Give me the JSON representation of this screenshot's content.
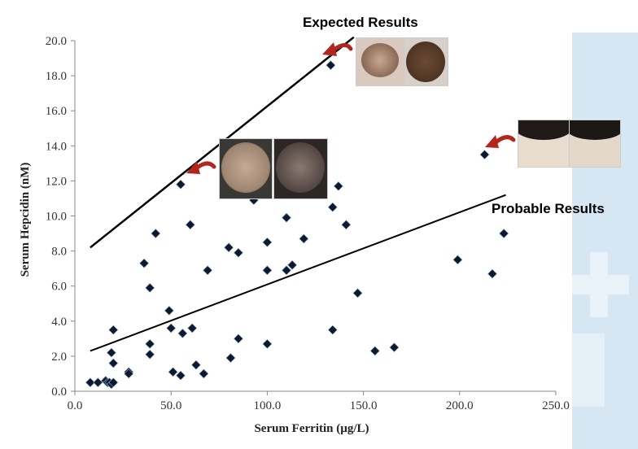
{
  "annotations": {
    "expected": "Expected Results",
    "probable": "Probable Results"
  },
  "colors": {
    "marker": "#0d1a2e",
    "arrow": "#b3261e",
    "axis": "#888888",
    "trend": "#000000",
    "panel": "#d6e7f3"
  },
  "chart_data": {
    "type": "scatter",
    "xlabel": "Serum Ferritin (µg/L)",
    "ylabel": "Serum Hepcidin (nM)",
    "xlim": [
      0,
      250
    ],
    "ylim": [
      0,
      20
    ],
    "x_ticks": [
      "0.0",
      "50.0",
      "100.0",
      "150.0",
      "200.0",
      "250.0"
    ],
    "y_ticks": [
      "0.0",
      "2.0",
      "4.0",
      "6.0",
      "8.0",
      "10.0",
      "12.0",
      "14.0",
      "16.0",
      "18.0",
      "20.0"
    ],
    "grid": false,
    "points": [
      [
        8,
        0.5
      ],
      [
        12,
        0.5
      ],
      [
        16,
        0.6
      ],
      [
        17,
        0.5
      ],
      [
        18,
        0.5
      ],
      [
        19,
        0.4
      ],
      [
        20,
        0.5
      ],
      [
        19,
        2.2
      ],
      [
        20,
        1.6
      ],
      [
        20,
        3.5
      ],
      [
        28,
        1.1
      ],
      [
        28,
        1.0
      ],
      [
        36,
        7.3
      ],
      [
        39,
        5.9
      ],
      [
        39,
        2.7
      ],
      [
        39,
        2.1
      ],
      [
        42,
        9.0
      ],
      [
        49,
        4.6
      ],
      [
        50,
        3.6
      ],
      [
        51,
        1.1
      ],
      [
        55,
        0.9
      ],
      [
        56,
        3.3
      ],
      [
        55,
        11.8
      ],
      [
        60,
        9.5
      ],
      [
        61,
        3.6
      ],
      [
        63,
        1.5
      ],
      [
        67,
        1.0
      ],
      [
        69,
        6.9
      ],
      [
        80,
        8.2
      ],
      [
        81,
        1.9
      ],
      [
        85,
        7.9
      ],
      [
        85,
        3.0
      ],
      [
        93,
        10.9
      ],
      [
        100,
        8.5
      ],
      [
        100,
        6.9
      ],
      [
        100,
        2.7
      ],
      [
        110,
        9.9
      ],
      [
        110,
        6.9
      ],
      [
        113,
        7.2
      ],
      [
        119,
        8.7
      ],
      [
        134,
        10.5
      ],
      [
        134,
        3.5
      ],
      [
        137,
        11.7
      ],
      [
        141,
        9.5
      ],
      [
        147,
        5.6
      ],
      [
        133,
        18.6
      ],
      [
        156,
        2.3
      ],
      [
        166,
        2.5
      ],
      [
        199,
        7.5
      ],
      [
        213,
        13.5
      ],
      [
        217,
        6.7
      ],
      [
        223,
        9.0
      ]
    ],
    "trend_lines": [
      {
        "label": "Expected Results",
        "x": [
          8,
          145
        ],
        "y": [
          8.2,
          20.2
        ]
      },
      {
        "label": "Probable Results",
        "x": [
          8,
          224
        ],
        "y": [
          2.3,
          11.2
        ]
      }
    ]
  }
}
